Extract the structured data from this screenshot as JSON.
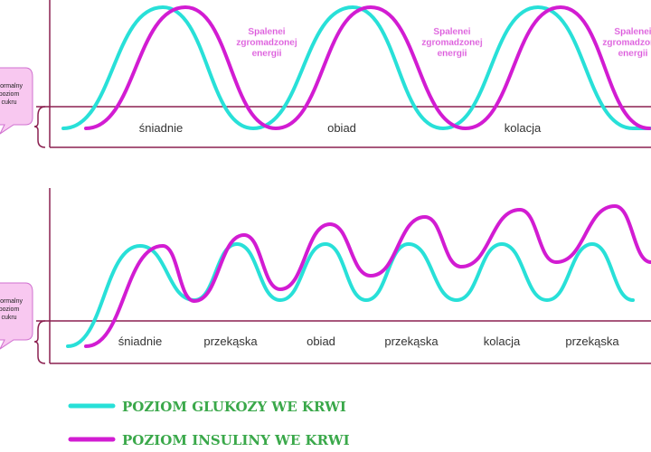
{
  "top_panel": {
    "meals": [
      "śniadnie",
      "obiad",
      "kolacja"
    ],
    "annotations": [
      "Spalenei zgromadzonej energii",
      "Spalenei zgromadzonej energii",
      "Spalenei zgromadzonej energii"
    ],
    "bubble": "Normalny poziom cukru"
  },
  "bottom_panel": {
    "meals": [
      "śniadnie",
      "przekąska",
      "obiad",
      "przekąska",
      "kolacja",
      "przekąska"
    ],
    "bubble": "Normalny poziom cukru"
  },
  "legend": [
    "POZIOM GLUKOZY WE KRWI",
    "POZIOM INSULINY WE KRWI"
  ]
}
